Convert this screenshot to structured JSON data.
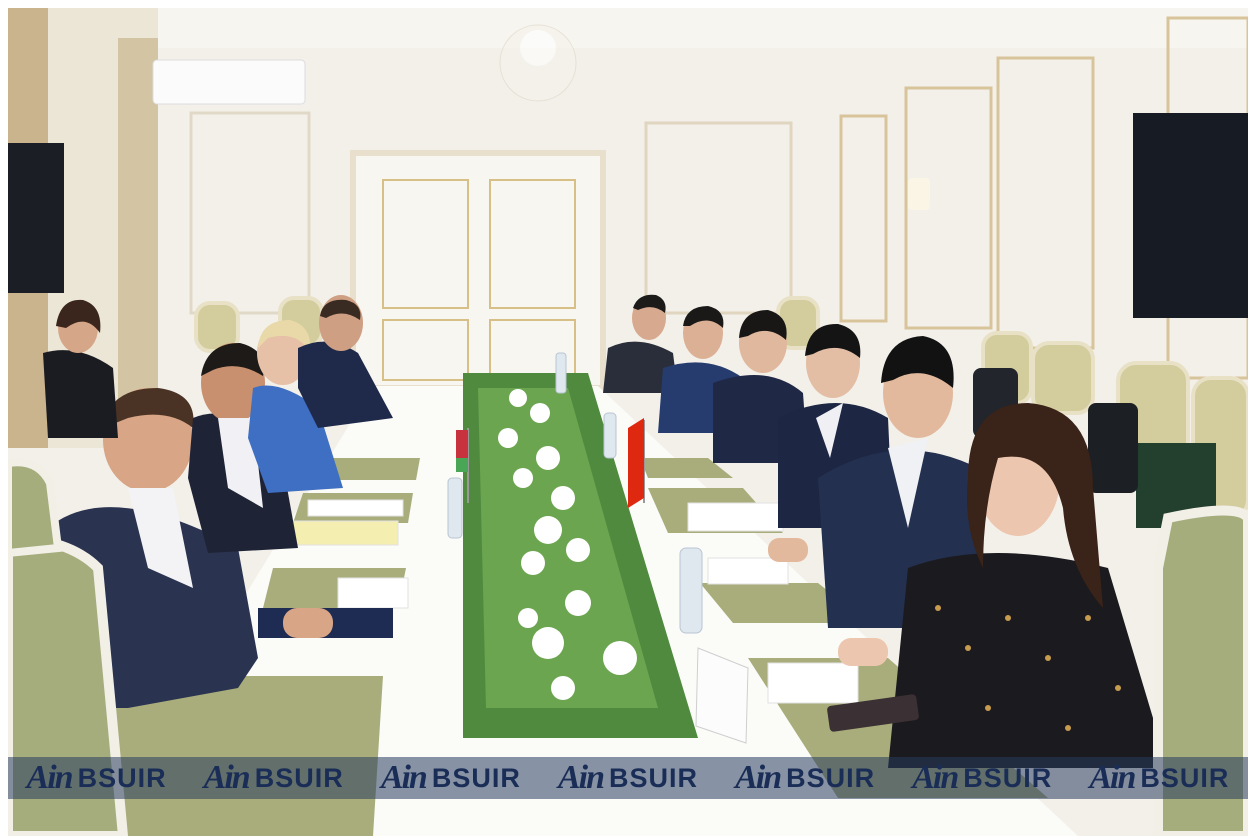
{
  "watermark": {
    "logo": "Ain",
    "text": "BSUIR",
    "repeats": [
      "1",
      "2",
      "3",
      "4",
      "5",
      "6",
      "7"
    ]
  },
  "scene": {
    "flags": [
      "flag-belarus",
      "flag-china"
    ],
    "colors": {
      "wall": "#f4f1ea",
      "gold_trim": "#d6bf8c",
      "table": "#fbfbf8",
      "placemat": "#a7ad7a",
      "suit_navy": "#1f2b4a",
      "suit_blue": "#3f6fc2",
      "flowers_green": "#3f7a35",
      "watermark_band": "#283c5f"
    }
  }
}
